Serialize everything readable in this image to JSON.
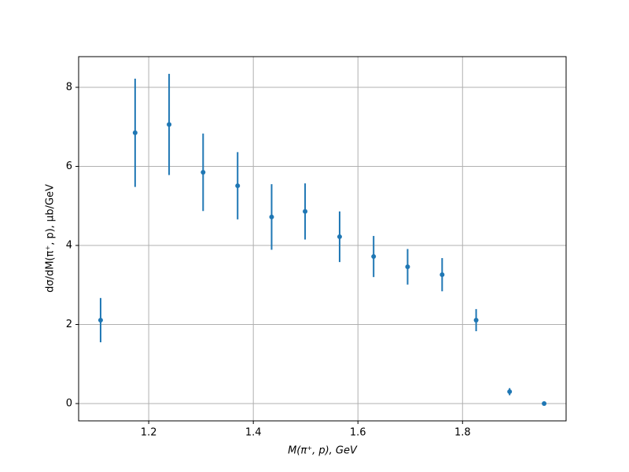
{
  "chart_data": {
    "type": "errorbar",
    "x_label": "M(π⁺, p), GeV",
    "y_label": "dσ/dM(π⁺, p), μb/GeV",
    "x": [
      1.108,
      1.174,
      1.239,
      1.304,
      1.37,
      1.435,
      1.499,
      1.565,
      1.63,
      1.695,
      1.761,
      1.826,
      1.89,
      1.956
    ],
    "series": [
      {
        "color": "#1f77b4",
        "values": [
          2.11,
          6.85,
          7.06,
          5.85,
          5.51,
          4.72,
          4.86,
          4.22,
          3.72,
          3.46,
          3.26,
          2.11,
          0.3,
          0.0
        ],
        "errors": [
          0.56,
          1.37,
          1.28,
          0.98,
          0.85,
          0.83,
          0.71,
          0.64,
          0.52,
          0.45,
          0.42,
          0.28,
          0.09,
          0.02
        ]
      }
    ],
    "xlim": [
      1.066,
      1.998
    ],
    "ylim": [
      -0.438,
      8.776
    ],
    "xticks": [
      1.2,
      1.4,
      1.6,
      1.8
    ],
    "yticks": [
      0,
      2,
      4,
      6,
      8
    ],
    "grid": true
  }
}
